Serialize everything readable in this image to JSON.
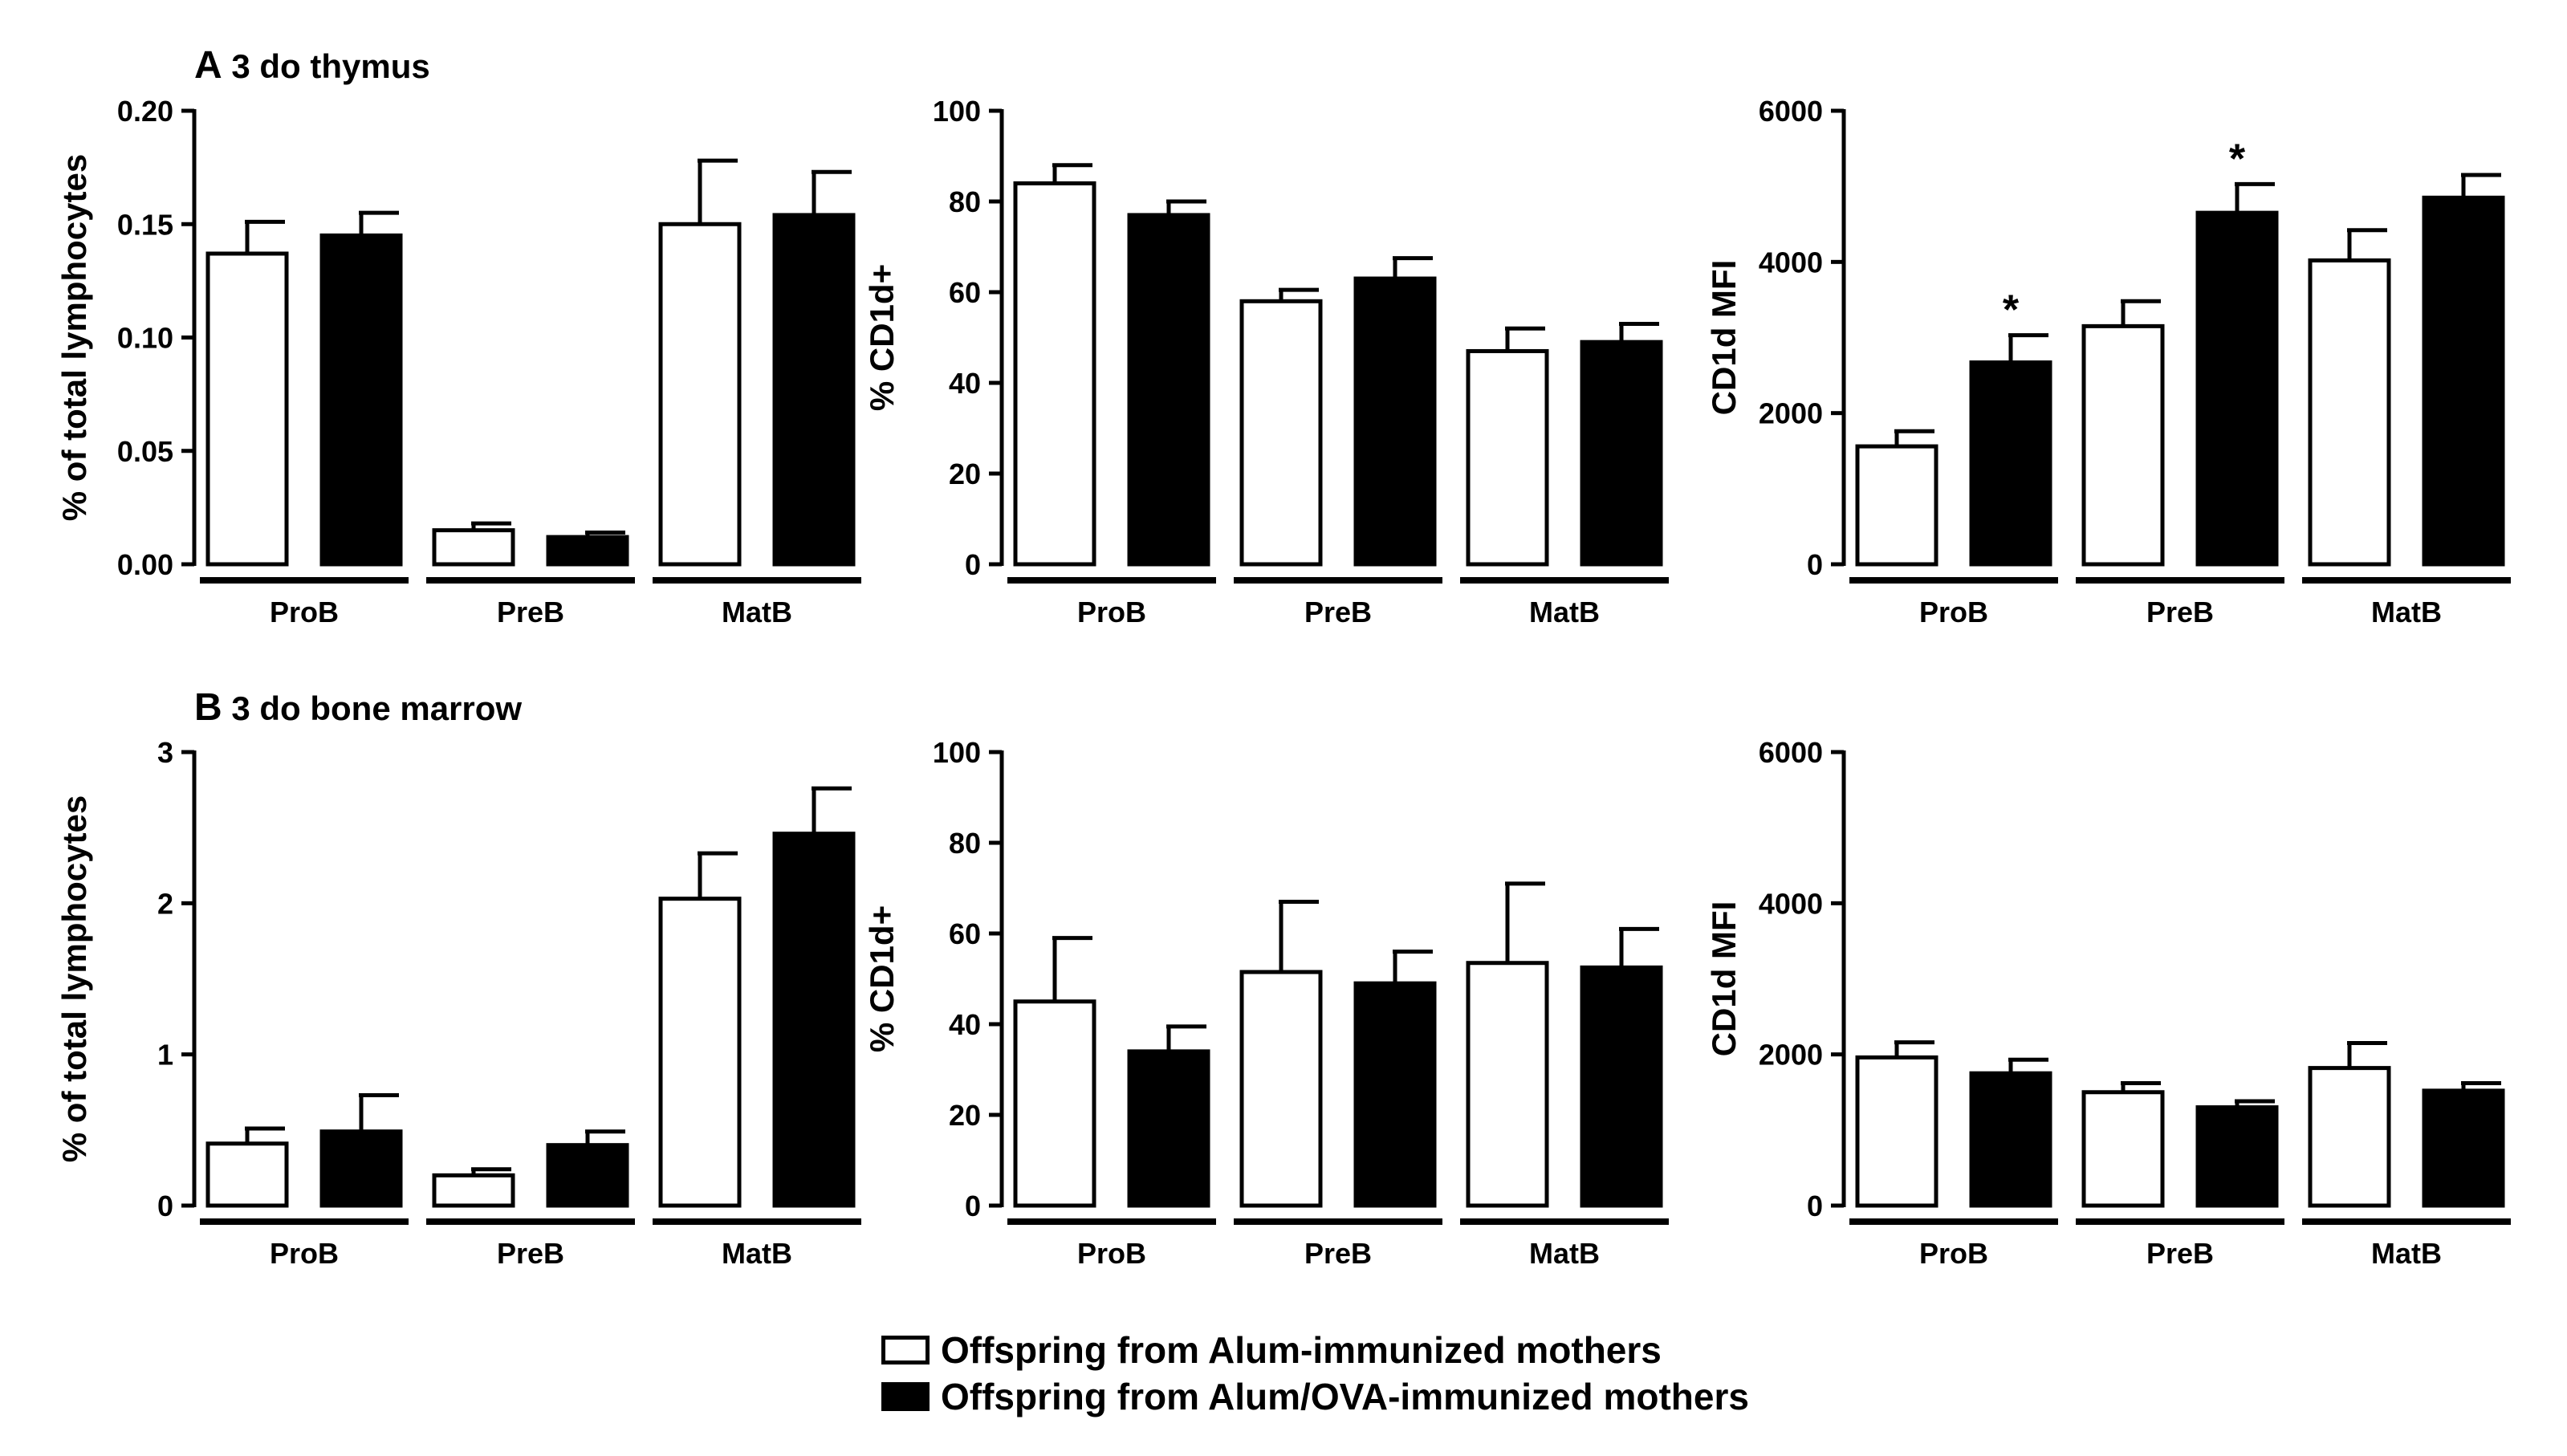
{
  "figure": {
    "panel_a": {
      "letter": "A",
      "title": "3 do thymus"
    },
    "panel_b": {
      "letter": "B",
      "title": "3 do bone marrow"
    }
  },
  "legend": {
    "items": [
      {
        "label": "Offspring from Alum-immunized mothers",
        "fill": "#ffffff"
      },
      {
        "label": "Offspring from Alum/OVA-immunized mothers",
        "fill": "#000000"
      }
    ]
  },
  "colors": {
    "alum": "#ffffff",
    "alum_ova": "#000000",
    "stroke": "#000000"
  },
  "chart_data": [
    {
      "type": "bar",
      "panel": "A",
      "categories": [
        "ProB",
        "PreB",
        "MatB"
      ],
      "ylabel": "% of total lymphocytes",
      "xlabel": "",
      "ylim": [
        0,
        0.2
      ],
      "yticks": [
        "0.00",
        "0.05",
        "0.10",
        "0.15",
        "0.20"
      ],
      "grid": false,
      "series": [
        {
          "name": "Offspring from Alum-immunized mothers",
          "fill": "#ffffff",
          "values": [
            0.137,
            0.015,
            0.15
          ],
          "errors": [
            0.014,
            0.003,
            0.028
          ],
          "significance": [
            "",
            "",
            ""
          ]
        },
        {
          "name": "Offspring from Alum/OVA-immunized mothers",
          "fill": "#000000",
          "values": [
            0.145,
            0.012,
            0.154
          ],
          "errors": [
            0.01,
            0.002,
            0.019
          ],
          "significance": [
            "",
            "",
            ""
          ]
        }
      ]
    },
    {
      "type": "bar",
      "panel": "A",
      "categories": [
        "ProB",
        "PreB",
        "MatB"
      ],
      "ylabel": "% CD1d+",
      "xlabel": "",
      "ylim": [
        0,
        100
      ],
      "yticks": [
        "0",
        "20",
        "40",
        "60",
        "80",
        "100"
      ],
      "grid": false,
      "series": [
        {
          "name": "Offspring from Alum-immunized mothers",
          "fill": "#ffffff",
          "values": [
            84,
            58,
            47
          ],
          "errors": [
            4,
            2.5,
            5
          ],
          "significance": [
            "",
            "",
            ""
          ]
        },
        {
          "name": "Offspring from Alum/OVA-immunized mothers",
          "fill": "#000000",
          "values": [
            77,
            63,
            49
          ],
          "errors": [
            3,
            4.5,
            4
          ],
          "significance": [
            "",
            "",
            ""
          ]
        }
      ]
    },
    {
      "type": "bar",
      "panel": "A",
      "categories": [
        "ProB",
        "PreB",
        "MatB"
      ],
      "ylabel": "CD1d MFI",
      "xlabel": "",
      "ylim": [
        0,
        6000
      ],
      "yticks": [
        "0",
        "2000",
        "4000",
        "6000"
      ],
      "grid": false,
      "series": [
        {
          "name": "Offspring from Alum-immunized mothers",
          "fill": "#ffffff",
          "values": [
            1560,
            3150,
            4020
          ],
          "errors": [
            200,
            330,
            400
          ],
          "significance": [
            "",
            "",
            ""
          ]
        },
        {
          "name": "Offspring from Alum/OVA-immunized mothers",
          "fill": "#000000",
          "values": [
            2670,
            4650,
            4850
          ],
          "errors": [
            360,
            380,
            300
          ],
          "significance": [
            "*",
            "*",
            ""
          ]
        }
      ]
    },
    {
      "type": "bar",
      "panel": "B",
      "categories": [
        "ProB",
        "PreB",
        "MatB"
      ],
      "ylabel": "% of total lymphocytes",
      "xlabel": "",
      "ylim": [
        0,
        3
      ],
      "yticks": [
        "0",
        "1",
        "2",
        "3"
      ],
      "grid": false,
      "series": [
        {
          "name": "Offspring from Alum-immunized mothers",
          "fill": "#ffffff",
          "values": [
            0.41,
            0.2,
            2.03
          ],
          "errors": [
            0.1,
            0.04,
            0.3
          ],
          "significance": [
            "",
            "",
            ""
          ]
        },
        {
          "name": "Offspring from Alum/OVA-immunized mothers",
          "fill": "#000000",
          "values": [
            0.49,
            0.4,
            2.46
          ],
          "errors": [
            0.24,
            0.09,
            0.3
          ],
          "significance": [
            "",
            "",
            ""
          ]
        }
      ]
    },
    {
      "type": "bar",
      "panel": "B",
      "categories": [
        "ProB",
        "PreB",
        "MatB"
      ],
      "ylabel": "% CD1d+",
      "xlabel": "",
      "ylim": [
        0,
        100
      ],
      "yticks": [
        "0",
        "20",
        "40",
        "60",
        "80",
        "100"
      ],
      "grid": false,
      "series": [
        {
          "name": "Offspring from Alum-immunized mothers",
          "fill": "#ffffff",
          "values": [
            45,
            51.5,
            53.5
          ],
          "errors": [
            14,
            15.5,
            17.5
          ],
          "significance": [
            "",
            "",
            ""
          ]
        },
        {
          "name": "Offspring from Alum/OVA-immunized mothers",
          "fill": "#000000",
          "values": [
            34,
            49,
            52.5
          ],
          "errors": [
            5.5,
            7,
            8.5
          ],
          "significance": [
            "",
            "",
            ""
          ]
        }
      ]
    },
    {
      "type": "bar",
      "panel": "B",
      "categories": [
        "ProB",
        "PreB",
        "MatB"
      ],
      "ylabel": "CD1d MFI",
      "xlabel": "",
      "ylim": [
        0,
        6000
      ],
      "yticks": [
        "0",
        "2000",
        "4000",
        "6000"
      ],
      "grid": false,
      "series": [
        {
          "name": "Offspring from Alum-immunized mothers",
          "fill": "#ffffff",
          "values": [
            1960,
            1500,
            1820
          ],
          "errors": [
            200,
            120,
            330
          ],
          "significance": [
            "",
            "",
            ""
          ]
        },
        {
          "name": "Offspring from Alum/OVA-immunized mothers",
          "fill": "#000000",
          "values": [
            1750,
            1300,
            1520
          ],
          "errors": [
            180,
            80,
            100
          ],
          "significance": [
            "",
            "",
            ""
          ]
        }
      ]
    }
  ]
}
